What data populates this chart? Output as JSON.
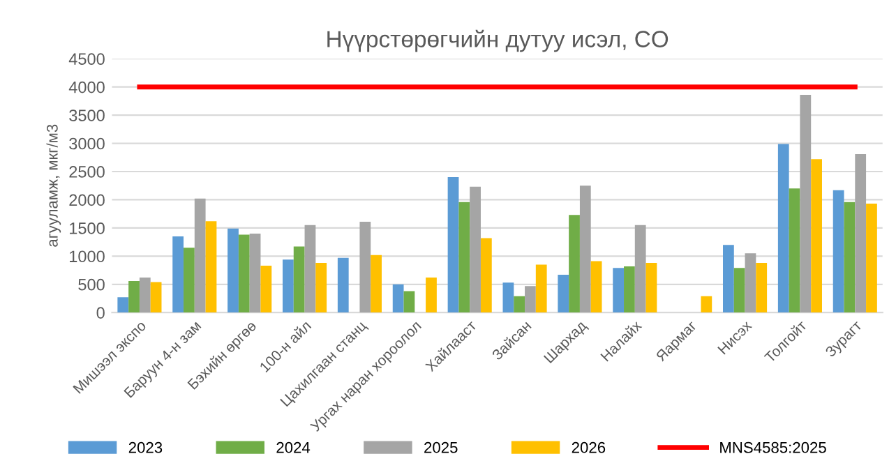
{
  "chart_data": {
    "type": "bar",
    "title": "Нүүрстөрөгчийн дутуу исэл, CO",
    "ylabel": "агууламж, мкг/м3",
    "categories": [
      "Мишээл экспо",
      "Баруун 4-н зам",
      "Бэхийн өргөө",
      "100-н айл",
      "Цахилгаан станц",
      "Ургах наран хороолол",
      "Хайлааст",
      "Зайсан",
      "Шархад",
      "Налайх",
      "Яармаг",
      "Нисэх",
      "Толгойт",
      "Зурагт"
    ],
    "series": [
      {
        "name": "2023",
        "color": "#5b9bd5",
        "values": [
          270,
          1350,
          1490,
          940,
          970,
          500,
          2400,
          530,
          670,
          790,
          null,
          1200,
          2990,
          2170
        ]
      },
      {
        "name": "2024",
        "color": "#70ad47",
        "values": [
          560,
          1150,
          1380,
          1170,
          null,
          380,
          1960,
          290,
          1730,
          820,
          null,
          790,
          2200,
          1960
        ]
      },
      {
        "name": "2025",
        "color": "#a5a5a5",
        "values": [
          620,
          2020,
          1400,
          1550,
          1610,
          null,
          2230,
          470,
          2250,
          1550,
          null,
          1050,
          3860,
          2810
        ]
      },
      {
        "name": "2026",
        "color": "#ffc000",
        "values": [
          540,
          1620,
          830,
          880,
          1020,
          620,
          1320,
          850,
          910,
          880,
          290,
          880,
          2720,
          1930
        ]
      },
      {
        "name": "MNS4585:2025",
        "type": "line",
        "color": "#ff0000",
        "values": [
          4000,
          4000,
          4000,
          4000,
          4000,
          4000,
          4000,
          4000,
          4000,
          4000,
          4000,
          4000,
          4000,
          4000
        ]
      }
    ],
    "ylim": [
      0,
      4500
    ],
    "yticks": [
      0,
      500,
      1000,
      1500,
      2000,
      2500,
      3000,
      3500,
      4000,
      4500
    ],
    "grid": "y",
    "legend": "bottom"
  }
}
